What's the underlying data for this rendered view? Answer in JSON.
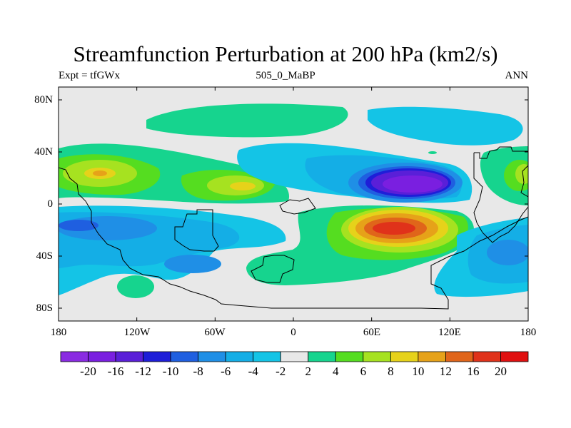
{
  "title": "Streamfunction Perturbation at 200 hPa (km2/s)",
  "subtitle_left": "Expt = tfGWx",
  "subtitle_center": "505_0_MaBP",
  "subtitle_right": "ANN",
  "map": {
    "lat_ticks": [
      "80N",
      "40N",
      "0",
      "40S",
      "80S"
    ],
    "lon_ticks": [
      "180",
      "120W",
      "60W",
      "0",
      "60E",
      "120E",
      "180"
    ]
  },
  "colorbar": {
    "labels": [
      "-20",
      "-16",
      "-12",
      "-10",
      "-8",
      "-6",
      "-4",
      "-2",
      "2",
      "4",
      "6",
      "8",
      "10",
      "12",
      "16",
      "20"
    ],
    "colors": [
      "#8a2be2",
      "#7a1fe0",
      "#5a1fd8",
      "#1e1ed8",
      "#1f5fe0",
      "#1f8fe6",
      "#14aee6",
      "#14c4e6",
      "#e8e8e8",
      "#16d48e",
      "#55dd20",
      "#a6e220",
      "#e6d21a",
      "#e6a219",
      "#e0651a",
      "#e0321a",
      "#e01010"
    ]
  },
  "colors": {
    "neutral": "#e8e8e8",
    "coastline": "#000000"
  }
}
